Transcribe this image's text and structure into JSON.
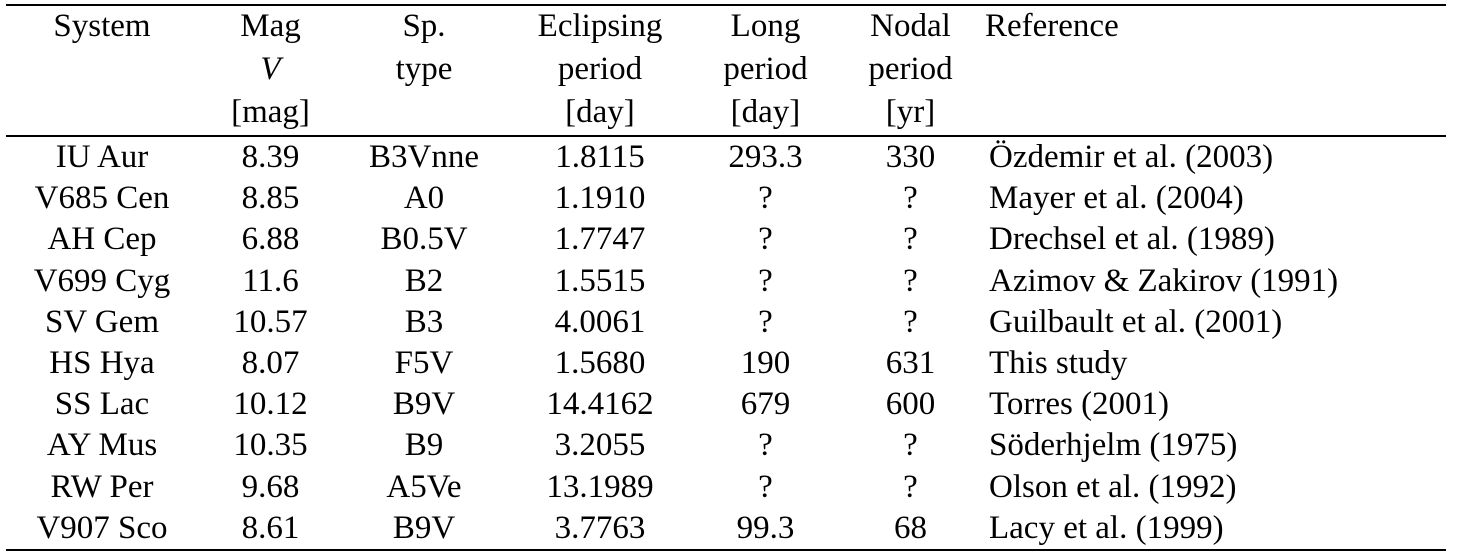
{
  "table": {
    "headers": [
      {
        "lines": [
          "System",
          "",
          ""
        ]
      },
      {
        "lines": [
          "Mag",
          "V",
          "[mag]"
        ]
      },
      {
        "lines": [
          "Sp.",
          "type",
          ""
        ]
      },
      {
        "lines": [
          "Eclipsing",
          "period",
          "[day]"
        ]
      },
      {
        "lines": [
          "Long",
          "period",
          "[day]"
        ]
      },
      {
        "lines": [
          "Nodal",
          "period",
          "[yr]"
        ]
      },
      {
        "lines": [
          "Reference",
          "",
          ""
        ]
      }
    ],
    "rows": [
      [
        "IU Aur",
        "8.39",
        "B3Vnne",
        "1.8115",
        "293.3",
        "330",
        "Özdemir et al. (2003)"
      ],
      [
        "V685 Cen",
        "8.85",
        "A0",
        "1.1910",
        "?",
        "?",
        "Mayer et al. (2004)"
      ],
      [
        "AH Cep",
        "6.88",
        "B0.5V",
        "1.7747",
        "?",
        "?",
        "Drechsel et al. (1989)"
      ],
      [
        "V699 Cyg",
        "11.6",
        "B2",
        "1.5515",
        "?",
        "?",
        "Azimov & Zakirov (1991)"
      ],
      [
        "SV Gem",
        "10.57",
        "B3",
        "4.0061",
        "?",
        "?",
        "Guilbault et al. (2001)"
      ],
      [
        "HS Hya",
        "8.07",
        "F5V",
        "1.5680",
        "190",
        "631",
        "This study"
      ],
      [
        "SS Lac",
        "10.12",
        "B9V",
        "14.4162",
        "679",
        "600",
        "Torres (2001)"
      ],
      [
        "AY Mus",
        "10.35",
        "B9",
        "3.2055",
        "?",
        "?",
        "Söderhjelm (1975)"
      ],
      [
        "RW Per",
        "9.68",
        "A5Ve",
        "13.1989",
        "?",
        "?",
        "Olson et al. (1992)"
      ],
      [
        "V907 Sco",
        "8.61",
        "B9V",
        "3.7763",
        "99.3",
        "68",
        "Lacy et al. (1999)"
      ]
    ]
  }
}
